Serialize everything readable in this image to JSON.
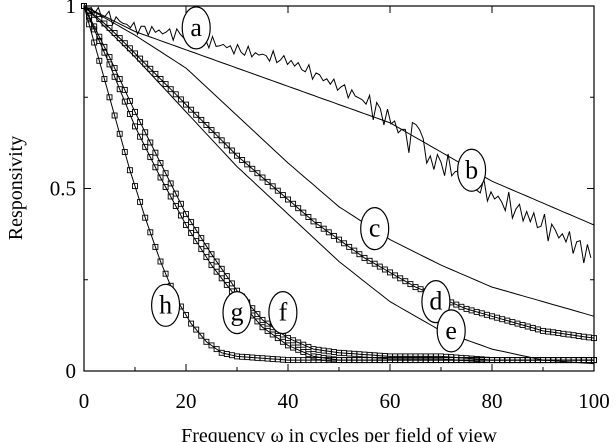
{
  "chart_data": {
    "type": "line",
    "title": "",
    "xlabel": "Frequency ω in cycles per field of view",
    "ylabel": "Responsivity",
    "xlim": [
      0,
      100
    ],
    "ylim": [
      0,
      1
    ],
    "x_ticks": [
      0,
      20,
      40,
      60,
      80,
      100
    ],
    "x_tick_labels": [
      "0",
      "20",
      "40",
      "60",
      "80",
      "100"
    ],
    "y_ticks": [
      0,
      0.5,
      1
    ],
    "y_tick_labels": [
      "0",
      "0.5",
      "1"
    ],
    "grid": false,
    "legend": "none; curves identified by circled letters",
    "line_color": "#000000",
    "series": [
      {
        "name": "a",
        "style": "line",
        "x": [
          0,
          10,
          20,
          30,
          40,
          50,
          60,
          70,
          80,
          90,
          100
        ],
        "y": [
          1.0,
          0.93,
          0.88,
          0.83,
          0.78,
          0.73,
          0.68,
          0.6,
          0.52,
          0.46,
          0.4
        ]
      },
      {
        "name": "b",
        "style": "noisy-line",
        "x": [
          0,
          10,
          15,
          20,
          25,
          30,
          40,
          50,
          55,
          60,
          64,
          65.5,
          67,
          70,
          75,
          80,
          85,
          90,
          95,
          100
        ],
        "y": [
          1.0,
          0.94,
          0.93,
          0.92,
          0.9,
          0.88,
          0.85,
          0.78,
          0.74,
          0.69,
          0.63,
          0.7,
          0.58,
          0.57,
          0.53,
          0.48,
          0.44,
          0.4,
          0.36,
          0.31
        ]
      },
      {
        "name": "c",
        "style": "line",
        "x": [
          0,
          10,
          20,
          30,
          40,
          50,
          60,
          70,
          80,
          90,
          100
        ],
        "y": [
          1.0,
          0.92,
          0.83,
          0.7,
          0.57,
          0.45,
          0.36,
          0.29,
          0.23,
          0.19,
          0.15
        ]
      },
      {
        "name": "d",
        "style": "square-markers",
        "x": [
          0,
          5,
          10,
          15,
          20,
          25,
          30,
          35,
          40,
          45,
          50,
          55,
          60,
          65,
          70,
          75,
          80,
          85,
          90,
          95,
          100
        ],
        "y": [
          1.0,
          0.94,
          0.87,
          0.8,
          0.73,
          0.66,
          0.59,
          0.53,
          0.47,
          0.41,
          0.36,
          0.31,
          0.27,
          0.23,
          0.2,
          0.17,
          0.15,
          0.13,
          0.11,
          0.1,
          0.09
        ]
      },
      {
        "name": "e",
        "style": "line",
        "x": [
          0,
          10,
          20,
          30,
          40,
          50,
          60,
          70,
          80,
          90,
          100
        ],
        "y": [
          1.0,
          0.86,
          0.71,
          0.56,
          0.43,
          0.3,
          0.19,
          0.11,
          0.06,
          0.03,
          0.02
        ]
      },
      {
        "name": "f",
        "style": "square-markers",
        "x": [
          0,
          5,
          10,
          15,
          20,
          25,
          30,
          35,
          40,
          45,
          50,
          60,
          70,
          80,
          90,
          100
        ],
        "y": [
          1.0,
          0.86,
          0.71,
          0.57,
          0.43,
          0.32,
          0.22,
          0.14,
          0.09,
          0.06,
          0.05,
          0.04,
          0.04,
          0.03,
          0.03,
          0.03
        ]
      },
      {
        "name": "g",
        "style": "square-markers",
        "x": [
          0,
          5,
          10,
          15,
          20,
          25,
          30,
          35,
          40,
          45,
          50,
          60,
          70,
          80,
          90,
          100
        ],
        "y": [
          1.0,
          0.84,
          0.67,
          0.53,
          0.4,
          0.29,
          0.2,
          0.12,
          0.07,
          0.04,
          0.03,
          0.03,
          0.03,
          0.03,
          0.03,
          0.03
        ]
      },
      {
        "name": "h",
        "style": "square-markers",
        "x": [
          0,
          3,
          6,
          9,
          12,
          15,
          18,
          21,
          24,
          27,
          30,
          40,
          50,
          60,
          70,
          80,
          90,
          100
        ],
        "y": [
          1.0,
          0.85,
          0.7,
          0.55,
          0.42,
          0.3,
          0.2,
          0.13,
          0.08,
          0.05,
          0.04,
          0.03,
          0.03,
          0.03,
          0.03,
          0.03,
          0.03,
          0.03
        ]
      }
    ],
    "annotations": [
      {
        "text": "a",
        "x": 22,
        "y": 0.94
      },
      {
        "text": "b",
        "x": 76,
        "y": 0.55
      },
      {
        "text": "c",
        "x": 57,
        "y": 0.39
      },
      {
        "text": "d",
        "x": 69,
        "y": 0.19
      },
      {
        "text": "e",
        "x": 72,
        "y": 0.11
      },
      {
        "text": "f",
        "x": 39,
        "y": 0.16
      },
      {
        "text": "g",
        "x": 30,
        "y": 0.16
      },
      {
        "text": "h",
        "x": 16,
        "y": 0.18
      }
    ]
  }
}
